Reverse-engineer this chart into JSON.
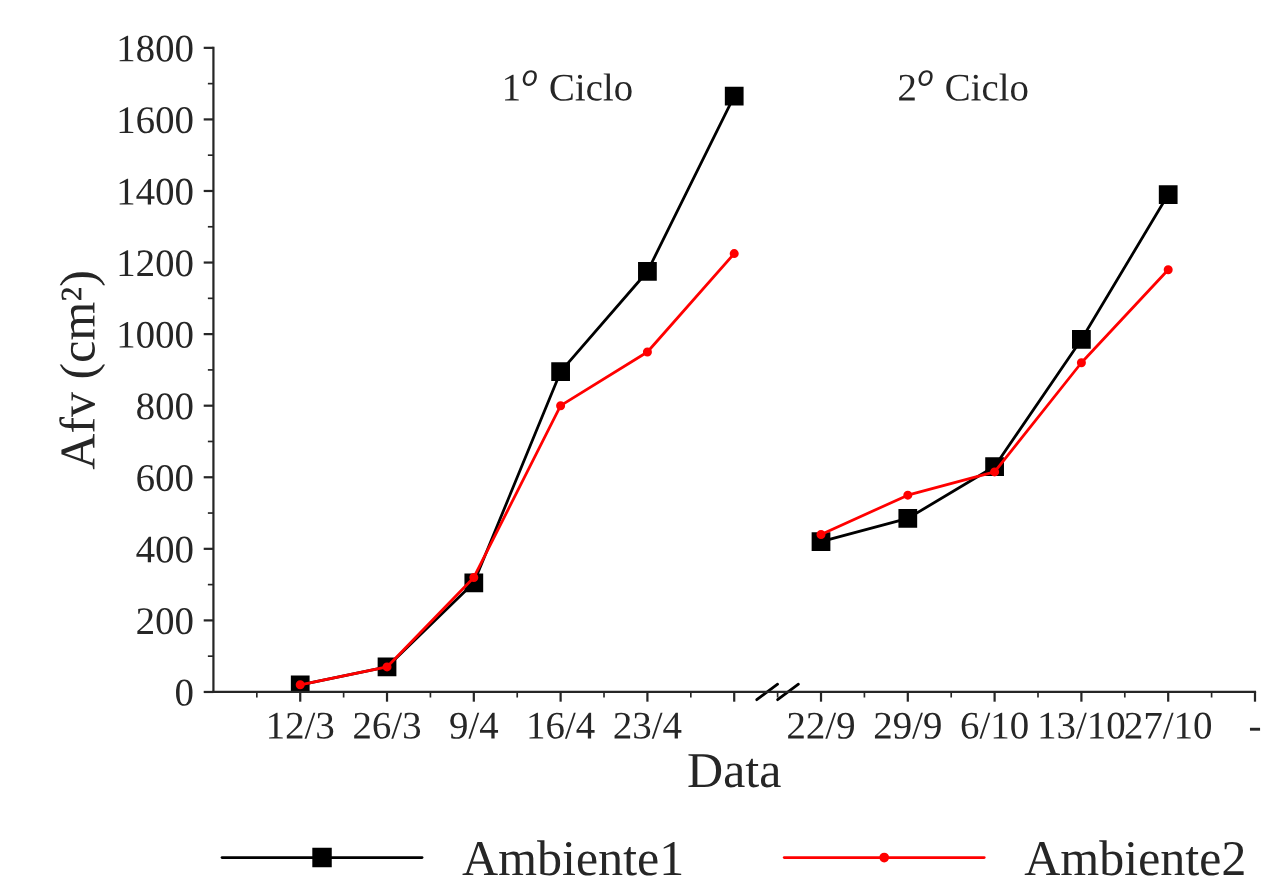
{
  "chart_data": {
    "type": "line",
    "xlabel": "Data",
    "ylabel": "Afv (cm²)",
    "categories": [
      "12/3",
      "26/3",
      "9/4",
      "16/4",
      "23/4",
      null,
      "22/9",
      "29/9",
      "6/10",
      "13/10",
      "27/10",
      "-"
    ],
    "series": [
      {
        "name": "Ambiente1",
        "color": "#000000",
        "marker": "square",
        "values": [
          20,
          70,
          305,
          895,
          1175,
          1665,
          null,
          null,
          null,
          null,
          null,
          null
        ]
      },
      {
        "name": "Ambiente2",
        "color": "#ff0000",
        "marker": "circle",
        "values": [
          20,
          70,
          320,
          800,
          950,
          1225,
          null,
          null,
          null,
          null,
          null,
          null
        ]
      },
      {
        "color": "#000000",
        "marker": "square",
        "values": [
          null,
          null,
          null,
          null,
          null,
          null,
          420,
          485,
          630,
          985,
          1390,
          null
        ]
      },
      {
        "color": "#ff0000",
        "marker": "circle",
        "values": [
          null,
          null,
          null,
          null,
          null,
          null,
          440,
          550,
          615,
          920,
          1180,
          null
        ]
      }
    ],
    "ylim": [
      0,
      1800
    ],
    "yticks": [
      0,
      200,
      400,
      600,
      800,
      1000,
      1200,
      1400,
      1600,
      1800
    ],
    "annotations": [
      "1$^{o}$ Ciclo",
      "2$^{o}$ Ciclo"
    ],
    "legend": "bottom",
    "grid": false
  }
}
